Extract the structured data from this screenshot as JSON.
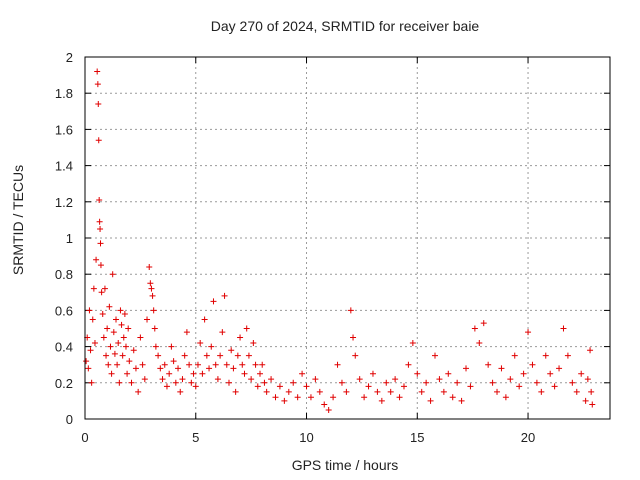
{
  "chart_data": {
    "type": "scatter",
    "title": "Day 270 of 2024, SRMTID for receiver baie",
    "xlabel": "GPS time / hours",
    "ylabel": "SRMTID / TECUs",
    "xlim": [
      0,
      23.7
    ],
    "ylim": [
      0,
      2
    ],
    "xticks": [
      0,
      5,
      10,
      15,
      20
    ],
    "yticks": [
      0,
      0.2,
      0.4,
      0.6,
      0.8,
      1,
      1.2,
      1.4,
      1.6,
      1.8,
      2
    ],
    "xtick_labels": [
      "0",
      "5",
      "10",
      "15",
      "20"
    ],
    "ytick_labels": [
      "0",
      "0.2",
      "0.4",
      "0.6",
      "0.8",
      "1",
      "1.2",
      "1.4",
      "1.6",
      "1.8",
      "2"
    ],
    "grid": true,
    "marker": "+",
    "series_color": "#e00000",
    "series": [
      {
        "name": "SRMTID",
        "points": [
          [
            0.05,
            0.32
          ],
          [
            0.1,
            0.45
          ],
          [
            0.15,
            0.28
          ],
          [
            0.2,
            0.6
          ],
          [
            0.25,
            0.38
          ],
          [
            0.3,
            0.2
          ],
          [
            0.35,
            0.55
          ],
          [
            0.4,
            0.72
          ],
          [
            0.45,
            0.42
          ],
          [
            0.5,
            0.88
          ],
          [
            0.55,
            1.92
          ],
          [
            0.58,
            1.85
          ],
          [
            0.6,
            1.74
          ],
          [
            0.62,
            1.54
          ],
          [
            0.64,
            1.21
          ],
          [
            0.66,
            1.09
          ],
          [
            0.68,
            1.05
          ],
          [
            0.7,
            0.97
          ],
          [
            0.72,
            0.85
          ],
          [
            0.75,
            0.7
          ],
          [
            0.8,
            0.58
          ],
          [
            0.85,
            0.45
          ],
          [
            0.9,
            0.72
          ],
          [
            0.95,
            0.35
          ],
          [
            1.0,
            0.5
          ],
          [
            1.05,
            0.3
          ],
          [
            1.1,
            0.62
          ],
          [
            1.15,
            0.4
          ],
          [
            1.2,
            0.25
          ],
          [
            1.25,
            0.8
          ],
          [
            1.3,
            0.48
          ],
          [
            1.35,
            0.36
          ],
          [
            1.4,
            0.55
          ],
          [
            1.45,
            0.3
          ],
          [
            1.5,
            0.42
          ],
          [
            1.55,
            0.2
          ],
          [
            1.6,
            0.6
          ],
          [
            1.65,
            0.52
          ],
          [
            1.7,
            0.35
          ],
          [
            1.75,
            0.45
          ],
          [
            1.8,
            0.58
          ],
          [
            1.85,
            0.4
          ],
          [
            1.9,
            0.25
          ],
          [
            1.95,
            0.5
          ],
          [
            2.0,
            0.32
          ],
          [
            2.1,
            0.2
          ],
          [
            2.2,
            0.38
          ],
          [
            2.3,
            0.28
          ],
          [
            2.4,
            0.15
          ],
          [
            2.5,
            0.45
          ],
          [
            2.6,
            0.3
          ],
          [
            2.7,
            0.22
          ],
          [
            2.8,
            0.55
          ],
          [
            2.9,
            0.84
          ],
          [
            2.95,
            0.75
          ],
          [
            3.0,
            0.72
          ],
          [
            3.05,
            0.68
          ],
          [
            3.1,
            0.6
          ],
          [
            3.15,
            0.5
          ],
          [
            3.2,
            0.4
          ],
          [
            3.3,
            0.35
          ],
          [
            3.4,
            0.28
          ],
          [
            3.5,
            0.22
          ],
          [
            3.6,
            0.3
          ],
          [
            3.7,
            0.18
          ],
          [
            3.8,
            0.25
          ],
          [
            3.9,
            0.4
          ],
          [
            4.0,
            0.32
          ],
          [
            4.1,
            0.2
          ],
          [
            4.2,
            0.28
          ],
          [
            4.3,
            0.15
          ],
          [
            4.4,
            0.22
          ],
          [
            4.5,
            0.35
          ],
          [
            4.6,
            0.48
          ],
          [
            4.7,
            0.3
          ],
          [
            4.8,
            0.2
          ],
          [
            4.9,
            0.25
          ],
          [
            5.0,
            0.18
          ],
          [
            5.1,
            0.3
          ],
          [
            5.2,
            0.42
          ],
          [
            5.3,
            0.25
          ],
          [
            5.4,
            0.55
          ],
          [
            5.5,
            0.35
          ],
          [
            5.6,
            0.28
          ],
          [
            5.7,
            0.4
          ],
          [
            5.8,
            0.65
          ],
          [
            5.9,
            0.3
          ],
          [
            6.0,
            0.22
          ],
          [
            6.1,
            0.35
          ],
          [
            6.2,
            0.48
          ],
          [
            6.3,
            0.68
          ],
          [
            6.4,
            0.3
          ],
          [
            6.5,
            0.2
          ],
          [
            6.6,
            0.38
          ],
          [
            6.7,
            0.28
          ],
          [
            6.8,
            0.15
          ],
          [
            6.9,
            0.35
          ],
          [
            7.0,
            0.45
          ],
          [
            7.1,
            0.3
          ],
          [
            7.2,
            0.25
          ],
          [
            7.3,
            0.5
          ],
          [
            7.4,
            0.35
          ],
          [
            7.5,
            0.22
          ],
          [
            7.6,
            0.42
          ],
          [
            7.7,
            0.3
          ],
          [
            7.8,
            0.18
          ],
          [
            7.9,
            0.25
          ],
          [
            8.0,
            0.3
          ],
          [
            8.1,
            0.2
          ],
          [
            8.2,
            0.15
          ],
          [
            8.4,
            0.22
          ],
          [
            8.6,
            0.12
          ],
          [
            8.8,
            0.18
          ],
          [
            9.0,
            0.1
          ],
          [
            9.2,
            0.15
          ],
          [
            9.4,
            0.2
          ],
          [
            9.6,
            0.12
          ],
          [
            9.8,
            0.25
          ],
          [
            10.0,
            0.18
          ],
          [
            10.2,
            0.12
          ],
          [
            10.4,
            0.22
          ],
          [
            10.6,
            0.15
          ],
          [
            10.8,
            0.08
          ],
          [
            11.0,
            0.05
          ],
          [
            11.2,
            0.12
          ],
          [
            11.4,
            0.3
          ],
          [
            11.6,
            0.2
          ],
          [
            11.8,
            0.15
          ],
          [
            12.0,
            0.6
          ],
          [
            12.1,
            0.45
          ],
          [
            12.2,
            0.35
          ],
          [
            12.4,
            0.22
          ],
          [
            12.6,
            0.12
          ],
          [
            12.8,
            0.18
          ],
          [
            13.0,
            0.25
          ],
          [
            13.2,
            0.15
          ],
          [
            13.4,
            0.1
          ],
          [
            13.6,
            0.2
          ],
          [
            13.8,
            0.15
          ],
          [
            14.0,
            0.22
          ],
          [
            14.2,
            0.12
          ],
          [
            14.4,
            0.18
          ],
          [
            14.6,
            0.3
          ],
          [
            14.8,
            0.42
          ],
          [
            15.0,
            0.25
          ],
          [
            15.2,
            0.15
          ],
          [
            15.4,
            0.2
          ],
          [
            15.6,
            0.1
          ],
          [
            15.8,
            0.35
          ],
          [
            16.0,
            0.22
          ],
          [
            16.2,
            0.15
          ],
          [
            16.4,
            0.25
          ],
          [
            16.6,
            0.12
          ],
          [
            16.8,
            0.2
          ],
          [
            17.0,
            0.1
          ],
          [
            17.2,
            0.28
          ],
          [
            17.4,
            0.18
          ],
          [
            17.6,
            0.5
          ],
          [
            17.8,
            0.42
          ],
          [
            18.0,
            0.53
          ],
          [
            18.2,
            0.3
          ],
          [
            18.4,
            0.2
          ],
          [
            18.6,
            0.15
          ],
          [
            18.8,
            0.28
          ],
          [
            19.0,
            0.12
          ],
          [
            19.2,
            0.22
          ],
          [
            19.4,
            0.35
          ],
          [
            19.6,
            0.18
          ],
          [
            19.8,
            0.25
          ],
          [
            20.0,
            0.48
          ],
          [
            20.2,
            0.3
          ],
          [
            20.4,
            0.2
          ],
          [
            20.6,
            0.15
          ],
          [
            20.8,
            0.35
          ],
          [
            21.0,
            0.25
          ],
          [
            21.2,
            0.18
          ],
          [
            21.4,
            0.28
          ],
          [
            21.6,
            0.5
          ],
          [
            21.8,
            0.35
          ],
          [
            22.0,
            0.2
          ],
          [
            22.2,
            0.15
          ],
          [
            22.4,
            0.25
          ],
          [
            22.6,
            0.1
          ],
          [
            22.7,
            0.22
          ],
          [
            22.8,
            0.38
          ],
          [
            22.85,
            0.15
          ],
          [
            22.9,
            0.08
          ]
        ]
      }
    ]
  }
}
